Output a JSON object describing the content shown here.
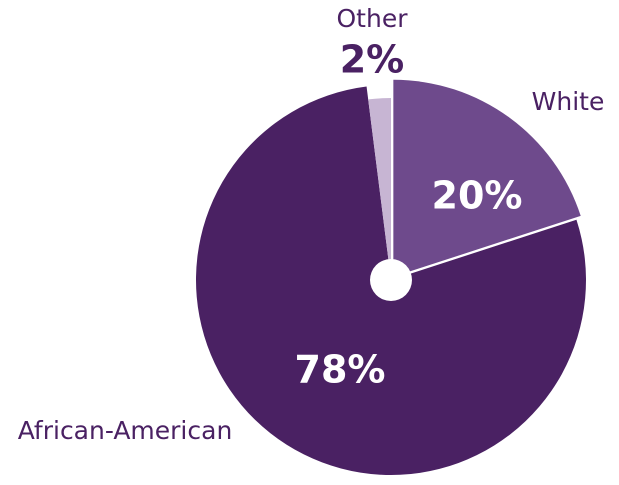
{
  "chart_data": {
    "type": "pie",
    "categories": [
      "White",
      "African-American",
      "Other"
    ],
    "values": [
      20,
      78,
      2
    ],
    "value_labels": [
      "20%",
      "78%",
      "2%"
    ],
    "colors": [
      "#6e4a8c",
      "#4a2163",
      "#c7b5d3"
    ]
  }
}
